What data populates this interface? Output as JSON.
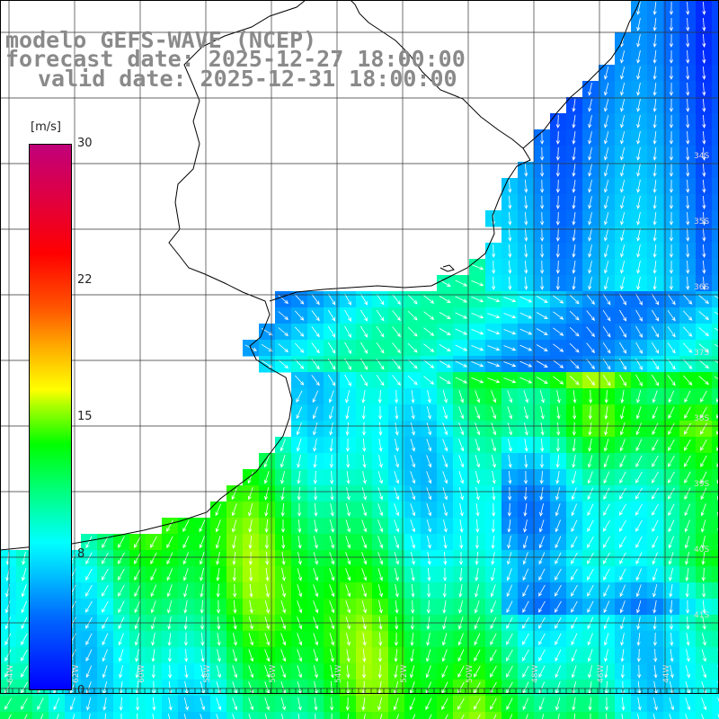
{
  "title": {
    "line1": "modelo GEFS-WAVE (NCEP)",
    "line2": "forecast date: 2025-12-27 18:00:00",
    "line3": "valid date: 2025-12-31 18:00:00"
  },
  "colorbar": {
    "unit": "[m/s]",
    "ticks": [
      {
        "label": "30",
        "value": 30
      },
      {
        "label": "22",
        "value": 22
      },
      {
        "label": "15",
        "value": 15
      },
      {
        "label": "8",
        "value": 8
      },
      {
        "label": "0",
        "value": 0
      }
    ],
    "range": [
      0,
      30
    ]
  },
  "map": {
    "lon_labels": [
      "64W",
      "62W",
      "60W",
      "58W",
      "56W",
      "54W",
      "52W",
      "50W",
      "48W",
      "46W",
      "44W"
    ],
    "lat_labels": [
      "34S",
      "35S",
      "36S",
      "37S",
      "38S",
      "39S",
      "40S",
      "41S"
    ],
    "colors": {
      "land": "#ffffff",
      "coast": "#000000",
      "grid": "#333333",
      "arrows": "#ffffff"
    }
  }
}
